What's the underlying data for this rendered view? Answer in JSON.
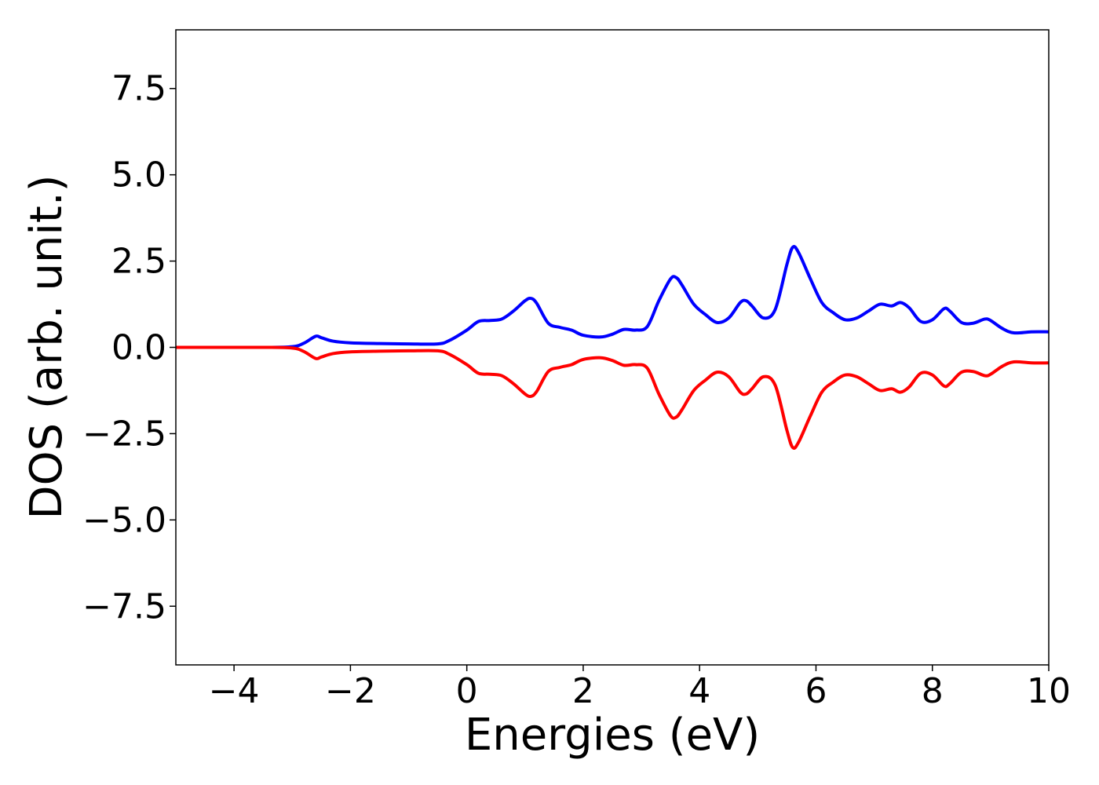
{
  "chart_data": {
    "type": "line",
    "title": "",
    "xlabel": "Energies (eV)",
    "ylabel": "DOS (arb. unit.)",
    "xlim": [
      -5,
      10
    ],
    "ylim": [
      -9.2,
      9.2
    ],
    "grid": false,
    "legend": "none",
    "x_ticks": [
      -4,
      -2,
      0,
      2,
      4,
      6,
      8,
      10
    ],
    "x_tick_labels": [
      "−4",
      "−2",
      "0",
      "2",
      "4",
      "6",
      "8",
      "10"
    ],
    "y_ticks": [
      7.5,
      5.0,
      2.5,
      0.0,
      -2.5,
      -5.0,
      -7.5
    ],
    "y_tick_labels": [
      "7.5",
      "5.0",
      "2.5",
      "0.0",
      "−2.5",
      "−5.0",
      "−7.5"
    ],
    "x": [
      -5.0,
      -3.5,
      -3.0,
      -2.8,
      -2.6,
      -2.5,
      -2.3,
      -2.0,
      -1.5,
      -1.0,
      -0.5,
      -0.3,
      0.0,
      0.2,
      0.4,
      0.6,
      0.8,
      1.0,
      1.1,
      1.2,
      1.4,
      1.6,
      1.8,
      2.0,
      2.3,
      2.5,
      2.7,
      2.9,
      3.1,
      3.3,
      3.5,
      3.6,
      3.7,
      3.9,
      4.1,
      4.3,
      4.5,
      4.7,
      4.8,
      4.9,
      5.1,
      5.3,
      5.5,
      5.6,
      5.7,
      5.9,
      6.1,
      6.3,
      6.5,
      6.7,
      6.9,
      7.1,
      7.3,
      7.45,
      7.6,
      7.8,
      8.0,
      8.2,
      8.3,
      8.5,
      8.7,
      8.9,
      9.0,
      9.2,
      9.4,
      9.7,
      10.0
    ],
    "series": [
      {
        "color": "#0000ff",
        "values": [
          0.0,
          0.0,
          0.02,
          0.12,
          0.32,
          0.28,
          0.18,
          0.13,
          0.11,
          0.1,
          0.1,
          0.2,
          0.5,
          0.75,
          0.78,
          0.82,
          1.05,
          1.35,
          1.42,
          1.28,
          0.7,
          0.58,
          0.5,
          0.35,
          0.3,
          0.38,
          0.52,
          0.5,
          0.6,
          1.35,
          1.98,
          2.02,
          1.8,
          1.25,
          0.95,
          0.72,
          0.85,
          1.3,
          1.35,
          1.2,
          0.85,
          1.1,
          2.4,
          2.9,
          2.75,
          2.0,
          1.3,
          1.0,
          0.8,
          0.85,
          1.05,
          1.25,
          1.2,
          1.3,
          1.15,
          0.75,
          0.8,
          1.12,
          1.05,
          0.72,
          0.7,
          0.82,
          0.78,
          0.55,
          0.42,
          0.45,
          0.45
        ]
      },
      {
        "color": "#ff0000",
        "values": [
          0.0,
          0.0,
          -0.02,
          -0.12,
          -0.32,
          -0.28,
          -0.18,
          -0.13,
          -0.11,
          -0.1,
          -0.1,
          -0.2,
          -0.5,
          -0.75,
          -0.78,
          -0.82,
          -1.05,
          -1.35,
          -1.42,
          -1.28,
          -0.7,
          -0.58,
          -0.5,
          -0.35,
          -0.3,
          -0.38,
          -0.52,
          -0.5,
          -0.6,
          -1.35,
          -1.98,
          -2.02,
          -1.8,
          -1.25,
          -0.95,
          -0.72,
          -0.85,
          -1.3,
          -1.35,
          -1.2,
          -0.85,
          -1.1,
          -2.4,
          -2.9,
          -2.75,
          -2.0,
          -1.3,
          -1.0,
          -0.8,
          -0.85,
          -1.05,
          -1.25,
          -1.2,
          -1.3,
          -1.15,
          -0.75,
          -0.8,
          -1.12,
          -1.05,
          -0.72,
          -0.7,
          -0.82,
          -0.78,
          -0.55,
          -0.42,
          -0.45,
          -0.45
        ]
      }
    ]
  }
}
